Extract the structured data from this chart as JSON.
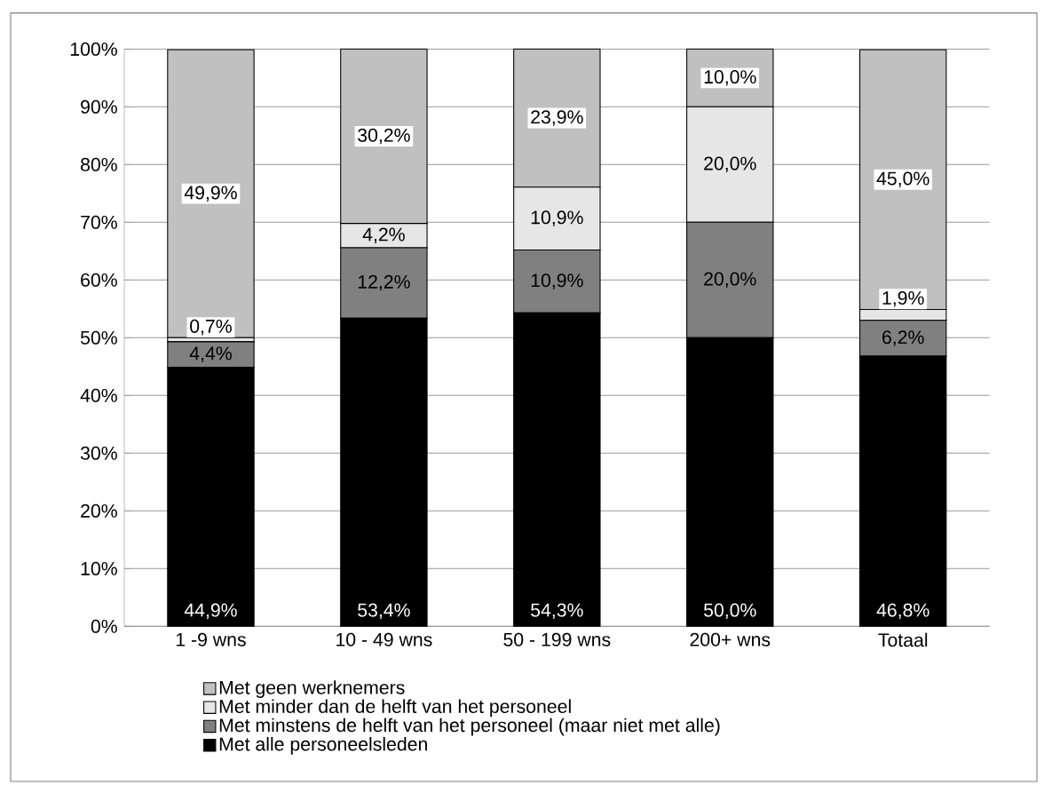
{
  "chart_data": {
    "type": "bar",
    "stacked": true,
    "categories": [
      "1 -9 wns",
      "10 - 49 wns",
      "50 - 199 wns",
      "200+ wns",
      "Totaal"
    ],
    "series": [
      {
        "name": "Met alle personeelsleden",
        "color": "#000000",
        "values": [
          44.9,
          53.4,
          54.3,
          50.0,
          46.8
        ],
        "value_labels": [
          "44,9%",
          "53,4%",
          "54,3%",
          "50,0%",
          "46,8%"
        ]
      },
      {
        "name": "Met minstens de helft van het personeel (maar niet met alle)",
        "color": "#808080",
        "values": [
          4.4,
          12.2,
          10.9,
          20.0,
          6.2
        ],
        "value_labels": [
          "4,4%",
          "12,2%",
          "10,9%",
          "20,0%",
          "6,2%"
        ]
      },
      {
        "name": "Met minder dan de helft van het personeel",
        "color": "#e6e6e6",
        "values": [
          0.7,
          4.2,
          10.9,
          20.0,
          1.9
        ],
        "value_labels": [
          "0,7%",
          "4,2%",
          "10,9%",
          "20,0%",
          "1,9%"
        ]
      },
      {
        "name": "Met geen werknemers",
        "color": "#c0c0c0",
        "values": [
          49.9,
          30.2,
          23.9,
          10.0,
          45.0
        ],
        "value_labels": [
          "49,9%",
          "30,2%",
          "23,9%",
          "10,0%",
          "45,0%"
        ]
      }
    ],
    "ylim": [
      0,
      100
    ],
    "yticks": [
      {
        "value": 0,
        "label": "0%"
      },
      {
        "value": 10,
        "label": "10%"
      },
      {
        "value": 20,
        "label": "20%"
      },
      {
        "value": 30,
        "label": "30%"
      },
      {
        "value": 40,
        "label": "40%"
      },
      {
        "value": 50,
        "label": "50%"
      },
      {
        "value": 60,
        "label": "60%"
      },
      {
        "value": 70,
        "label": "70%"
      },
      {
        "value": 80,
        "label": "80%"
      },
      {
        "value": 90,
        "label": "90%"
      },
      {
        "value": 100,
        "label": "100%"
      }
    ],
    "grid": "y",
    "legend": "bottom"
  }
}
